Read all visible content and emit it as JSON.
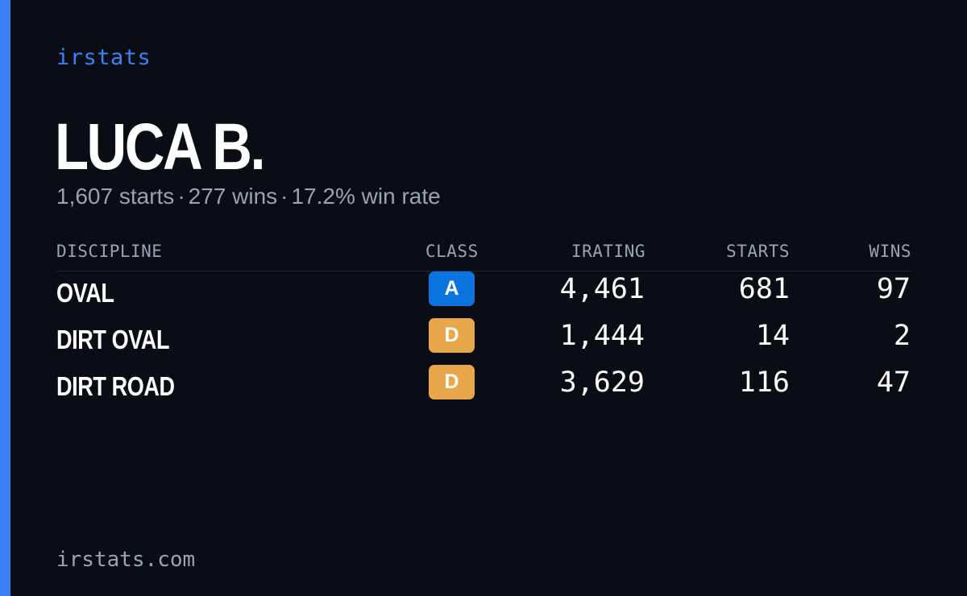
{
  "brand": "irstats",
  "player": {
    "name": "LUCA B.",
    "starts": "1,607 starts",
    "wins": "277 wins",
    "win_rate": "17.2% win rate",
    "separator": "·"
  },
  "table": {
    "headers": {
      "discipline": "DISCIPLINE",
      "class": "CLASS",
      "irating": "IRATING",
      "starts": "STARTS",
      "wins": "WINS"
    },
    "rows": [
      {
        "discipline": "OVAL",
        "class": "A",
        "class_color": "#0b74e0",
        "irating": "4,461",
        "starts": "681",
        "wins": "97"
      },
      {
        "discipline": "DIRT OVAL",
        "class": "D",
        "class_color": "#e9a74b",
        "irating": "1,444",
        "starts": "14",
        "wins": "2"
      },
      {
        "discipline": "DIRT ROAD",
        "class": "D",
        "class_color": "#e9a74b",
        "irating": "3,629",
        "starts": "116",
        "wins": "47"
      }
    ]
  },
  "footer": "irstats.com",
  "colors": {
    "background": "#0a0d14",
    "accent": "#3b82f6",
    "muted_text": "#9aa3b2",
    "class_a": "#0b74e0",
    "class_d": "#e9a74b"
  }
}
